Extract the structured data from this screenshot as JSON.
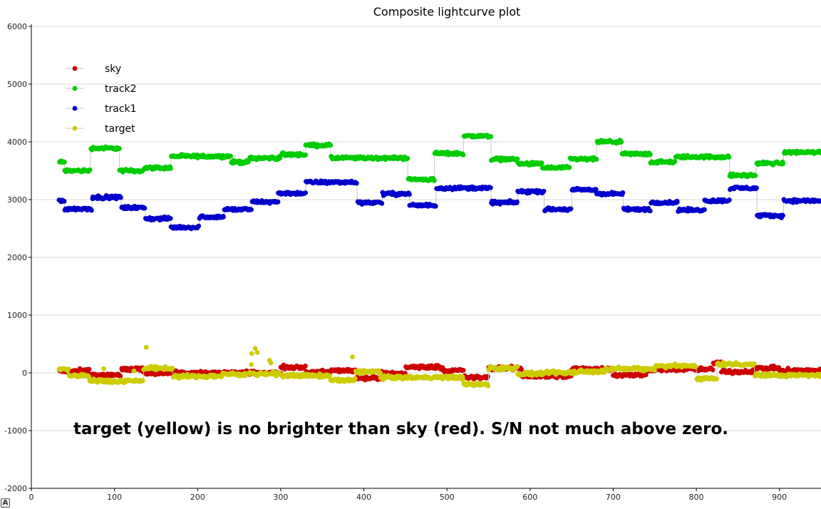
{
  "chart_data": {
    "type": "scatter",
    "title": "Composite lightcurve plot",
    "xlabel": "",
    "ylabel": "",
    "xlim": [
      0,
      950
    ],
    "ylim": [
      -2000,
      6000
    ],
    "x_ticks": [
      0,
      100,
      200,
      300,
      400,
      500,
      600,
      700,
      800,
      900
    ],
    "y_ticks": [
      -2000,
      -1000,
      0,
      1000,
      2000,
      3000,
      4000,
      5000,
      6000
    ],
    "grid": "horizontal",
    "legend_position": "top-left",
    "x_step": 1,
    "x_start": 33,
    "x_end": 950,
    "series": [
      {
        "name": "sky",
        "color": "#cc0000",
        "segments": [
          {
            "x": [
              33,
              70
            ],
            "y": 30
          },
          {
            "x": [
              70,
              108
            ],
            "y": -40
          },
          {
            "x": [
              108,
              135
            ],
            "y": 60
          },
          {
            "x": [
              135,
              300
            ],
            "y": 0
          },
          {
            "x": [
              300,
              330
            ],
            "y": 100
          },
          {
            "x": [
              330,
              360
            ],
            "y": 10
          },
          {
            "x": [
              360,
              390
            ],
            "y": 40
          },
          {
            "x": [
              390,
              420
            ],
            "y": -90
          },
          {
            "x": [
              420,
              450
            ],
            "y": -10
          },
          {
            "x": [
              450,
              495
            ],
            "y": 100
          },
          {
            "x": [
              495,
              520
            ],
            "y": 40
          },
          {
            "x": [
              520,
              550
            ],
            "y": -80
          },
          {
            "x": [
              550,
              590
            ],
            "y": 80
          },
          {
            "x": [
              590,
              650
            ],
            "y": -60
          },
          {
            "x": [
              650,
              700
            ],
            "y": 70
          },
          {
            "x": [
              700,
              740
            ],
            "y": -40
          },
          {
            "x": [
              740,
              820
            ],
            "y": 60
          },
          {
            "x": [
              820,
              830
            ],
            "y": 170
          },
          {
            "x": [
              830,
              870
            ],
            "y": 20
          },
          {
            "x": [
              870,
              900
            ],
            "y": 80
          },
          {
            "x": [
              900,
              950
            ],
            "y": 40
          }
        ]
      },
      {
        "name": "track2",
        "color": "#00cc00",
        "segments": [
          {
            "x": [
              33,
              40
            ],
            "y": 3650
          },
          {
            "x": [
              40,
              71
            ],
            "y": 3500
          },
          {
            "x": [
              71,
              106
            ],
            "y": 3890
          },
          {
            "x": [
              106,
              135
            ],
            "y": 3500
          },
          {
            "x": [
              135,
              168
            ],
            "y": 3550
          },
          {
            "x": [
              168,
              240
            ],
            "y": 3750
          },
          {
            "x": [
              240,
              262
            ],
            "y": 3650
          },
          {
            "x": [
              262,
              300
            ],
            "y": 3720
          },
          {
            "x": [
              300,
              330
            ],
            "y": 3780
          },
          {
            "x": [
              330,
              360
            ],
            "y": 3940
          },
          {
            "x": [
              360,
              453
            ],
            "y": 3720
          },
          {
            "x": [
              453,
              485
            ],
            "y": 3350
          },
          {
            "x": [
              485,
              520
            ],
            "y": 3800
          },
          {
            "x": [
              520,
              553
            ],
            "y": 4100
          },
          {
            "x": [
              553,
              585
            ],
            "y": 3700
          },
          {
            "x": [
              585,
              615
            ],
            "y": 3620
          },
          {
            "x": [
              615,
              648
            ],
            "y": 3550
          },
          {
            "x": [
              648,
              680
            ],
            "y": 3700
          },
          {
            "x": [
              680,
              710
            ],
            "y": 4000
          },
          {
            "x": [
              710,
              745
            ],
            "y": 3790
          },
          {
            "x": [
              745,
              775
            ],
            "y": 3650
          },
          {
            "x": [
              775,
              840
            ],
            "y": 3740
          },
          {
            "x": [
              840,
              872
            ],
            "y": 3420
          },
          {
            "x": [
              872,
              905
            ],
            "y": 3630
          },
          {
            "x": [
              905,
              950
            ],
            "y": 3820
          }
        ]
      },
      {
        "name": "track1",
        "color": "#0000cc",
        "segments": [
          {
            "x": [
              33,
              40
            ],
            "y": 2980
          },
          {
            "x": [
              40,
              73
            ],
            "y": 2840
          },
          {
            "x": [
              73,
              108
            ],
            "y": 3040
          },
          {
            "x": [
              108,
              137
            ],
            "y": 2860
          },
          {
            "x": [
              137,
              168
            ],
            "y": 2670
          },
          {
            "x": [
              168,
              202
            ],
            "y": 2520
          },
          {
            "x": [
              202,
              232
            ],
            "y": 2700
          },
          {
            "x": [
              232,
              265
            ],
            "y": 2830
          },
          {
            "x": [
              265,
              297
            ],
            "y": 2960
          },
          {
            "x": [
              297,
              330
            ],
            "y": 3110
          },
          {
            "x": [
              330,
              392
            ],
            "y": 3300
          },
          {
            "x": [
              392,
              422
            ],
            "y": 2950
          },
          {
            "x": [
              422,
              455
            ],
            "y": 3100
          },
          {
            "x": [
              455,
              487
            ],
            "y": 2900
          },
          {
            "x": [
              487,
              553
            ],
            "y": 3200
          },
          {
            "x": [
              553,
              585
            ],
            "y": 2950
          },
          {
            "x": [
              585,
              617
            ],
            "y": 3140
          },
          {
            "x": [
              617,
              650
            ],
            "y": 2830
          },
          {
            "x": [
              650,
              680
            ],
            "y": 3170
          },
          {
            "x": [
              680,
              712
            ],
            "y": 3100
          },
          {
            "x": [
              712,
              745
            ],
            "y": 2830
          },
          {
            "x": [
              745,
              778
            ],
            "y": 2950
          },
          {
            "x": [
              778,
              810
            ],
            "y": 2820
          },
          {
            "x": [
              810,
              840
            ],
            "y": 2980
          },
          {
            "x": [
              840,
              873
            ],
            "y": 3200
          },
          {
            "x": [
              873,
              905
            ],
            "y": 2720
          },
          {
            "x": [
              905,
              950
            ],
            "y": 2980
          }
        ]
      },
      {
        "name": "target",
        "color": "#cccc00",
        "segments": [
          {
            "x": [
              33,
              45
            ],
            "y": 60
          },
          {
            "x": [
              45,
              70
            ],
            "y": -50
          },
          {
            "x": [
              70,
              135
            ],
            "y": -140
          },
          {
            "x": [
              135,
              170
            ],
            "y": 80
          },
          {
            "x": [
              170,
              230
            ],
            "y": -60
          },
          {
            "x": [
              230,
              300
            ],
            "y": -20
          },
          {
            "x": [
              300,
              360
            ],
            "y": -50
          },
          {
            "x": [
              360,
              390
            ],
            "y": -130
          },
          {
            "x": [
              390,
              420
            ],
            "y": 20
          },
          {
            "x": [
              420,
              520
            ],
            "y": -80
          },
          {
            "x": [
              520,
              550
            ],
            "y": -200
          },
          {
            "x": [
              550,
              585
            ],
            "y": 80
          },
          {
            "x": [
              585,
              620
            ],
            "y": -20
          },
          {
            "x": [
              620,
              650
            ],
            "y": 0
          },
          {
            "x": [
              650,
              690
            ],
            "y": 20
          },
          {
            "x": [
              690,
              750
            ],
            "y": 70
          },
          {
            "x": [
              750,
              800
            ],
            "y": 120
          },
          {
            "x": [
              800,
              825
            ],
            "y": -100
          },
          {
            "x": [
              825,
              870
            ],
            "y": 150
          },
          {
            "x": [
              870,
              950
            ],
            "y": -40
          }
        ]
      }
    ],
    "annotations": [
      "target (yellow) is no brighter than sky (red). S/N  not much above zero."
    ]
  },
  "corner_badge": "A"
}
